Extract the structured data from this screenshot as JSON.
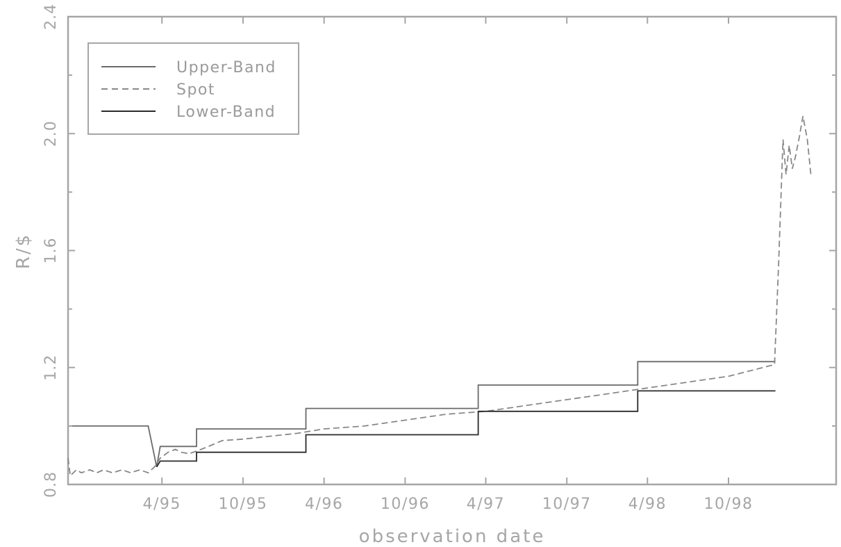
{
  "chart_data": {
    "type": "line",
    "xlabel": "observation date",
    "ylabel": "R/$",
    "xlim": [
      "1994-09-01",
      "1999-06-01"
    ],
    "ylim": [
      0.8,
      2.4
    ],
    "x_ticks": [
      {
        "date": "1995-04-01",
        "label": "4/95"
      },
      {
        "date": "1995-10-01",
        "label": "10/95"
      },
      {
        "date": "1996-04-01",
        "label": "4/96"
      },
      {
        "date": "1996-10-01",
        "label": "10/96"
      },
      {
        "date": "1997-04-01",
        "label": "4/97"
      },
      {
        "date": "1997-10-01",
        "label": "10/97"
      },
      {
        "date": "1998-04-01",
        "label": "4/98"
      },
      {
        "date": "1998-10-01",
        "label": "10/98"
      }
    ],
    "y_ticks": [
      {
        "value": 0.8,
        "label": "0.8"
      },
      {
        "value": 1.2,
        "label": "1.2"
      },
      {
        "value": 1.6,
        "label": "1.6"
      },
      {
        "value": 2.0,
        "label": "2.0"
      },
      {
        "value": 2.4,
        "label": "2.4"
      }
    ],
    "y_minor_ticks": [
      1.0,
      1.4,
      1.8,
      2.2
    ],
    "grid": false,
    "legend": {
      "placement": "top-left"
    },
    "series": [
      {
        "name": "Upper-Band",
        "style": "solid",
        "color": "#6a6a6a",
        "points": [
          [
            "1994-09-01",
            1.0
          ],
          [
            "1995-03-01",
            1.0
          ],
          [
            "1995-03-20",
            0.86
          ],
          [
            "1995-03-28",
            0.93
          ],
          [
            "1995-06-18",
            0.93
          ],
          [
            "1995-06-18",
            0.99
          ],
          [
            "1996-02-20",
            0.99
          ],
          [
            "1996-02-20",
            1.06
          ],
          [
            "1997-03-15",
            1.06
          ],
          [
            "1997-03-15",
            1.14
          ],
          [
            "1998-03-10",
            1.14
          ],
          [
            "1998-03-10",
            1.22
          ],
          [
            "1999-01-15",
            1.22
          ]
        ]
      },
      {
        "name": "Spot",
        "style": "dashed",
        "color": "#888888",
        "points": [
          [
            "1994-09-01",
            0.89
          ],
          [
            "1994-09-06",
            0.83
          ],
          [
            "1994-09-20",
            0.85
          ],
          [
            "1994-10-01",
            0.84
          ],
          [
            "1994-10-20",
            0.85
          ],
          [
            "1994-11-05",
            0.84
          ],
          [
            "1994-11-20",
            0.85
          ],
          [
            "1994-12-10",
            0.84
          ],
          [
            "1995-01-01",
            0.85
          ],
          [
            "1995-01-20",
            0.84
          ],
          [
            "1995-02-10",
            0.85
          ],
          [
            "1995-03-01",
            0.84
          ],
          [
            "1995-03-15",
            0.86
          ],
          [
            "1995-03-28",
            0.89
          ],
          [
            "1995-04-15",
            0.91
          ],
          [
            "1995-05-01",
            0.92
          ],
          [
            "1995-05-15",
            0.91
          ],
          [
            "1995-06-01",
            0.905
          ],
          [
            "1995-06-20",
            0.915
          ],
          [
            "1995-07-15",
            0.93
          ],
          [
            "1995-08-15",
            0.95
          ],
          [
            "1995-10-01",
            0.955
          ],
          [
            "1995-12-01",
            0.965
          ],
          [
            "1996-02-01",
            0.975
          ],
          [
            "1996-04-01",
            0.99
          ],
          [
            "1996-07-01",
            1.0
          ],
          [
            "1996-10-01",
            1.02
          ],
          [
            "1997-01-01",
            1.04
          ],
          [
            "1997-04-01",
            1.05
          ],
          [
            "1997-07-01",
            1.07
          ],
          [
            "1997-10-01",
            1.09
          ],
          [
            "1998-01-01",
            1.11
          ],
          [
            "1998-04-01",
            1.13
          ],
          [
            "1998-07-01",
            1.15
          ],
          [
            "1998-10-01",
            1.17
          ],
          [
            "1999-01-13",
            1.21
          ],
          [
            "1999-01-22",
            1.55
          ],
          [
            "1999-02-01",
            1.98
          ],
          [
            "1999-02-08",
            1.86
          ],
          [
            "1999-02-15",
            1.96
          ],
          [
            "1999-02-22",
            1.88
          ],
          [
            "1999-03-01",
            1.92
          ],
          [
            "1999-03-10",
            1.99
          ],
          [
            "1999-03-18",
            2.06
          ],
          [
            "1999-03-28",
            1.98
          ],
          [
            "1999-04-05",
            1.86
          ]
        ]
      },
      {
        "name": "Lower-Band",
        "style": "solid",
        "color": "#2a2a2a",
        "points": [
          [
            "1995-03-20",
            0.86
          ],
          [
            "1995-03-28",
            0.88
          ],
          [
            "1995-06-18",
            0.88
          ],
          [
            "1995-06-18",
            0.91
          ],
          [
            "1996-02-20",
            0.91
          ],
          [
            "1996-02-20",
            0.97
          ],
          [
            "1997-03-15",
            0.97
          ],
          [
            "1997-03-15",
            1.05
          ],
          [
            "1998-03-10",
            1.05
          ],
          [
            "1998-03-10",
            1.12
          ],
          [
            "1999-01-15",
            1.12
          ]
        ]
      }
    ]
  }
}
